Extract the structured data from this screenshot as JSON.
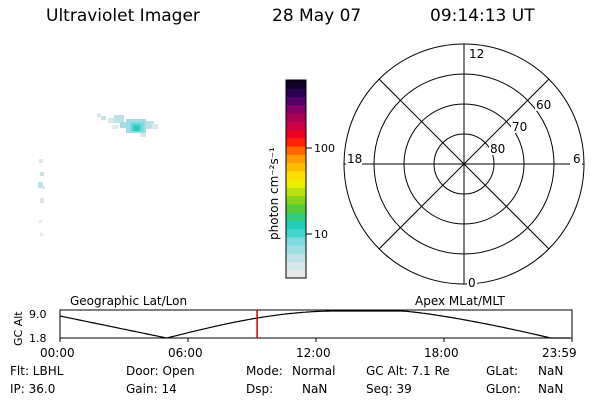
{
  "header": {
    "instrument": "Ultraviolet Imager",
    "date": "28 May 07",
    "time": "09:14:13 UT"
  },
  "colorbar": {
    "unit_label": "photon cm⁻²s⁻¹",
    "ticks": [
      "100",
      "10"
    ],
    "colors": [
      "#e8e8e8",
      "#d6e8ea",
      "#bde3e8",
      "#9fdfe4",
      "#7fd9de",
      "#44d4d0",
      "#22ccbb",
      "#33cc77",
      "#55cc33",
      "#88d41c",
      "#bbe012",
      "#eeee00",
      "#ffdd00",
      "#ffbb00",
      "#ff9900",
      "#ff6600",
      "#ff2200",
      "#ee0022",
      "#cc0044",
      "#aa0055",
      "#880066",
      "#550066",
      "#2a0050",
      "#10002a"
    ]
  },
  "polar_plot": {
    "mlt_labels": {
      "top": "12",
      "right": "6",
      "bottom": "0",
      "left": "18"
    },
    "lat_labels": [
      "60",
      "70",
      "80"
    ]
  },
  "timeline": {
    "left_label": "Geographic Lat/Lon",
    "right_label": "Apex MLat/MLT",
    "y_axis_label": "GC Alt",
    "y_ticks": [
      "9.0",
      "1.8"
    ],
    "x_ticks": [
      "00:00",
      "06:00",
      "12:00",
      "18:00",
      "23:59"
    ],
    "current_time_marker_hours": 9.237,
    "line_color": "#000000",
    "marker_color": "#cc0000"
  },
  "status": {
    "flt": "Flt: LBHL",
    "ip": "IP: 36.0",
    "door": "Door: Open",
    "gain": "Gain: 14",
    "mode_label": "Mode:",
    "mode_value": "Normal",
    "dsp_label": "Dsp:",
    "dsp_value": "NaN",
    "gc_alt": "GC Alt: 7.1 Re",
    "seq": "Seq: 39",
    "glat_label": "GLat:",
    "glat_value": "NaN",
    "glon_label": "GLon:",
    "glon_value": "NaN"
  }
}
